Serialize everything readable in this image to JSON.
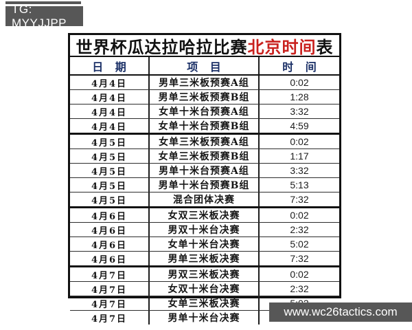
{
  "badges": {
    "telegram": "TG: MYYJJPP",
    "website": "www.wc26tactics.com"
  },
  "table": {
    "title": {
      "prefix": "世界杯瓜达拉哈拉比赛",
      "highlight": "北京时间",
      "suffix": "表"
    },
    "columns": [
      "日 期",
      "项 目",
      "时 间"
    ],
    "groups": [
      {
        "rows": [
          {
            "date": "4月4日",
            "event": "男单三米板预赛A组",
            "time": "0:02"
          },
          {
            "date": "4月4日",
            "event": "男单三米板预赛B组",
            "time": "1:28"
          },
          {
            "date": "4月4日",
            "event": "女单十米台预赛A组",
            "time": "3:32"
          },
          {
            "date": "4月4日",
            "event": "女单十米台预赛B组",
            "time": "4:59"
          }
        ]
      },
      {
        "rows": [
          {
            "date": "4月5日",
            "event": "女单三米板预赛A组",
            "time": "0:02"
          },
          {
            "date": "4月5日",
            "event": "女单三米板预赛B组",
            "time": "1:17"
          },
          {
            "date": "4月5日",
            "event": "男单十米台预赛A组",
            "time": "3:32"
          },
          {
            "date": "4月5日",
            "event": "男单十米台预赛B组",
            "time": "5:13"
          },
          {
            "date": "4月5日",
            "event": "混合团体决赛",
            "time": "7:32"
          }
        ]
      },
      {
        "rows": [
          {
            "date": "4月6日",
            "event": "女双三米板决赛",
            "time": "0:02"
          },
          {
            "date": "4月6日",
            "event": "男双十米台决赛",
            "time": "2:32"
          },
          {
            "date": "4月6日",
            "event": "女单十米台决赛",
            "time": "5:02"
          },
          {
            "date": "4月6日",
            "event": "男单三米板决赛",
            "time": "7:32"
          }
        ]
      },
      {
        "rows": [
          {
            "date": "4月7日",
            "event": "男双三米板决赛",
            "time": "0:02"
          },
          {
            "date": "4月7日",
            "event": "女双十米台决赛",
            "time": "2:32"
          },
          {
            "date": "4月7日",
            "event": "女单三米板决赛",
            "time": "5:02"
          },
          {
            "date": "4月7日",
            "event": "男单十米台决赛",
            "time": "7:32"
          }
        ]
      }
    ]
  },
  "colors": {
    "accent_red": "#c9211e",
    "header_blue": "#1a2f66",
    "badge_gray": "#575757",
    "border_black": "#111111"
  }
}
